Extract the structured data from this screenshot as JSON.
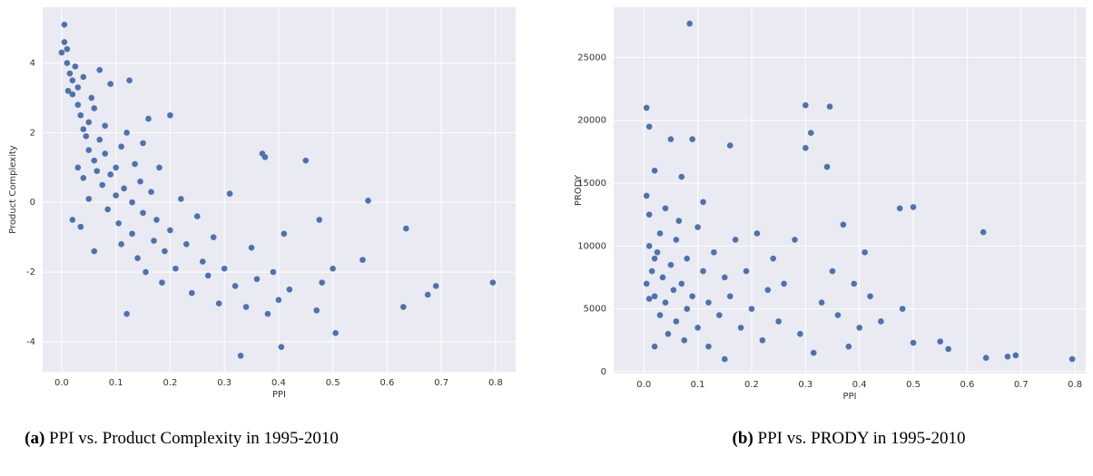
{
  "chart_data": [
    {
      "type": "scatter",
      "caption_label": "(a)",
      "caption": "PPI vs. Product Complexity in 1995-2010",
      "xlabel": "PPI",
      "ylabel": "Product Complexity",
      "color": "#4c72b0",
      "grid": true,
      "xlim": [
        -0.035,
        0.837
      ],
      "ylim": [
        -4.86,
        5.6
      ],
      "xticks": [
        {
          "value": 0,
          "label": "0.0"
        },
        0.1,
        0.2,
        0.3,
        0.4,
        0.5,
        0.6,
        0.7,
        0.8
      ],
      "yticks": [
        -4,
        -2,
        0,
        2,
        4
      ],
      "x": [
        0.005,
        0.005,
        0.01,
        0.01,
        0.015,
        0.02,
        0.02,
        0.025,
        0.03,
        0.03,
        0.035,
        0.04,
        0.04,
        0.045,
        0.05,
        0.05,
        0.055,
        0.06,
        0.06,
        0.065,
        0.07,
        0.07,
        0.075,
        0.08,
        0.08,
        0.085,
        0.09,
        0.09,
        0.1,
        0.1,
        0.105,
        0.11,
        0.11,
        0.115,
        0.12,
        0.12,
        0.125,
        0.13,
        0.13,
        0.135,
        0.14,
        0.145,
        0.15,
        0.15,
        0.155,
        0.16,
        0.165,
        0.17,
        0.175,
        0.18,
        0.185,
        0.19,
        0.2,
        0.2,
        0.21,
        0.22,
        0.23,
        0.24,
        0.25,
        0.26,
        0.27,
        0.28,
        0.29,
        0.3,
        0.31,
        0.32,
        0.33,
        0.34,
        0.35,
        0.36,
        0.37,
        0.375,
        0.38,
        0.39,
        0.4,
        0.405,
        0.41,
        0.42,
        0.45,
        0.47,
        0.475,
        0.48,
        0.5,
        0.505,
        0.555,
        0.565,
        0.63,
        0.635,
        0.675,
        0.69,
        0.795,
        0.02,
        0.05,
        0.03,
        0.0,
        0.012,
        0.035,
        0.06,
        0.04
      ],
      "y": [
        5.1,
        4.6,
        4.4,
        4.0,
        3.7,
        3.5,
        3.1,
        3.9,
        3.3,
        2.8,
        2.5,
        2.1,
        3.6,
        1.9,
        2.3,
        1.5,
        3.0,
        1.2,
        2.7,
        0.9,
        1.8,
        3.8,
        0.5,
        1.4,
        2.2,
        -0.2,
        0.8,
        3.4,
        1.0,
        0.2,
        -0.6,
        1.6,
        -1.2,
        0.4,
        2.0,
        -3.2,
        3.5,
        0.0,
        -0.9,
        1.1,
        -1.6,
        0.6,
        -0.3,
        1.7,
        -2.0,
        2.4,
        0.3,
        -1.1,
        -0.5,
        1.0,
        -2.3,
        -1.4,
        2.5,
        -0.8,
        -1.9,
        0.1,
        -1.2,
        -2.6,
        -0.4,
        -1.7,
        -2.1,
        -1.0,
        -2.9,
        -1.9,
        0.25,
        -2.4,
        -4.4,
        -3.0,
        -1.3,
        -2.2,
        1.4,
        1.3,
        -3.2,
        -2.0,
        -2.8,
        -4.15,
        -0.9,
        -2.5,
        1.2,
        -3.1,
        -0.5,
        -2.3,
        -1.9,
        -3.75,
        -1.65,
        0.05,
        -3.0,
        -0.75,
        -2.65,
        -2.4,
        -2.3,
        -0.5,
        0.1,
        1.0,
        4.3,
        3.2,
        -0.7,
        -1.4,
        0.7
      ]
    },
    {
      "type": "scatter",
      "caption_label": "(b)",
      "caption": "PPI vs. PRODY in 1995-2010",
      "xlabel": "PPI",
      "ylabel": "PRODY",
      "color": "#4c72b0",
      "grid": true,
      "xlim": [
        -0.056,
        0.82
      ],
      "ylim": [
        -150,
        29000
      ],
      "xticks": [
        {
          "value": 0,
          "label": "0.0"
        },
        0.1,
        0.2,
        0.3,
        0.4,
        0.5,
        0.6,
        0.7,
        0.8
      ],
      "yticks": [
        0,
        5000,
        10000,
        15000,
        20000,
        25000
      ],
      "x": [
        0.005,
        0.005,
        0.01,
        0.01,
        0.01,
        0.015,
        0.02,
        0.02,
        0.02,
        0.025,
        0.03,
        0.03,
        0.035,
        0.04,
        0.04,
        0.045,
        0.05,
        0.05,
        0.055,
        0.06,
        0.06,
        0.065,
        0.07,
        0.07,
        0.075,
        0.08,
        0.08,
        0.085,
        0.09,
        0.09,
        0.1,
        0.1,
        0.11,
        0.11,
        0.12,
        0.12,
        0.13,
        0.14,
        0.15,
        0.15,
        0.16,
        0.16,
        0.17,
        0.18,
        0.19,
        0.2,
        0.21,
        0.22,
        0.23,
        0.24,
        0.25,
        0.26,
        0.28,
        0.29,
        0.3,
        0.3,
        0.31,
        0.315,
        0.33,
        0.34,
        0.345,
        0.35,
        0.36,
        0.37,
        0.38,
        0.39,
        0.4,
        0.41,
        0.42,
        0.44,
        0.475,
        0.48,
        0.5,
        0.5,
        0.55,
        0.565,
        0.63,
        0.635,
        0.675,
        0.69,
        0.795,
        0.01,
        0.02,
        0.005
      ],
      "y": [
        21000,
        14000,
        19500,
        10000,
        12500,
        8000,
        16000,
        6000,
        2000,
        9500,
        11000,
        4500,
        7500,
        13000,
        5500,
        3000,
        8500,
        18500,
        6500,
        10500,
        4000,
        12000,
        7000,
        15500,
        2500,
        9000,
        5000,
        27700,
        18500,
        6000,
        11500,
        3500,
        8000,
        13500,
        5500,
        2000,
        9500,
        4500,
        7500,
        1000,
        18000,
        6000,
        10500,
        3500,
        8000,
        5000,
        11000,
        2500,
        6500,
        9000,
        4000,
        7000,
        10500,
        3000,
        21200,
        17800,
        19000,
        1500,
        5500,
        16300,
        21100,
        8000,
        4500,
        11700,
        2000,
        7000,
        3500,
        9500,
        6000,
        4000,
        13000,
        5000,
        13100,
        2300,
        2400,
        1800,
        11100,
        1100,
        1200,
        1300,
        1000,
        5800,
        9000,
        7000
      ]
    }
  ]
}
